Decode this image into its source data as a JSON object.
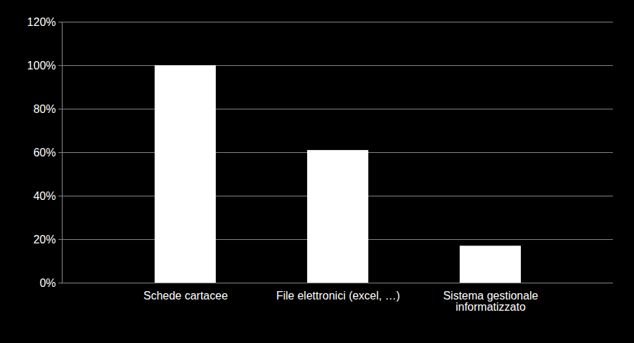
{
  "chart_data": {
    "type": "bar",
    "categories": [
      "Schede cartacee",
      "File elettronici (excel, …)",
      "Sistema gestionale\ninformatizzato"
    ],
    "values": [
      100,
      61,
      17
    ],
    "color": "#ffffff",
    "ylim": [
      0,
      120
    ],
    "yticks": [
      {
        "value": 0,
        "label": "0%"
      },
      {
        "value": 20,
        "label": "20%"
      },
      {
        "value": 40,
        "label": "40%"
      },
      {
        "value": 60,
        "label": "60%"
      },
      {
        "value": 80,
        "label": "80%"
      },
      {
        "value": 100,
        "label": "100%"
      },
      {
        "value": 120,
        "label": "120%"
      }
    ],
    "grid": true
  }
}
